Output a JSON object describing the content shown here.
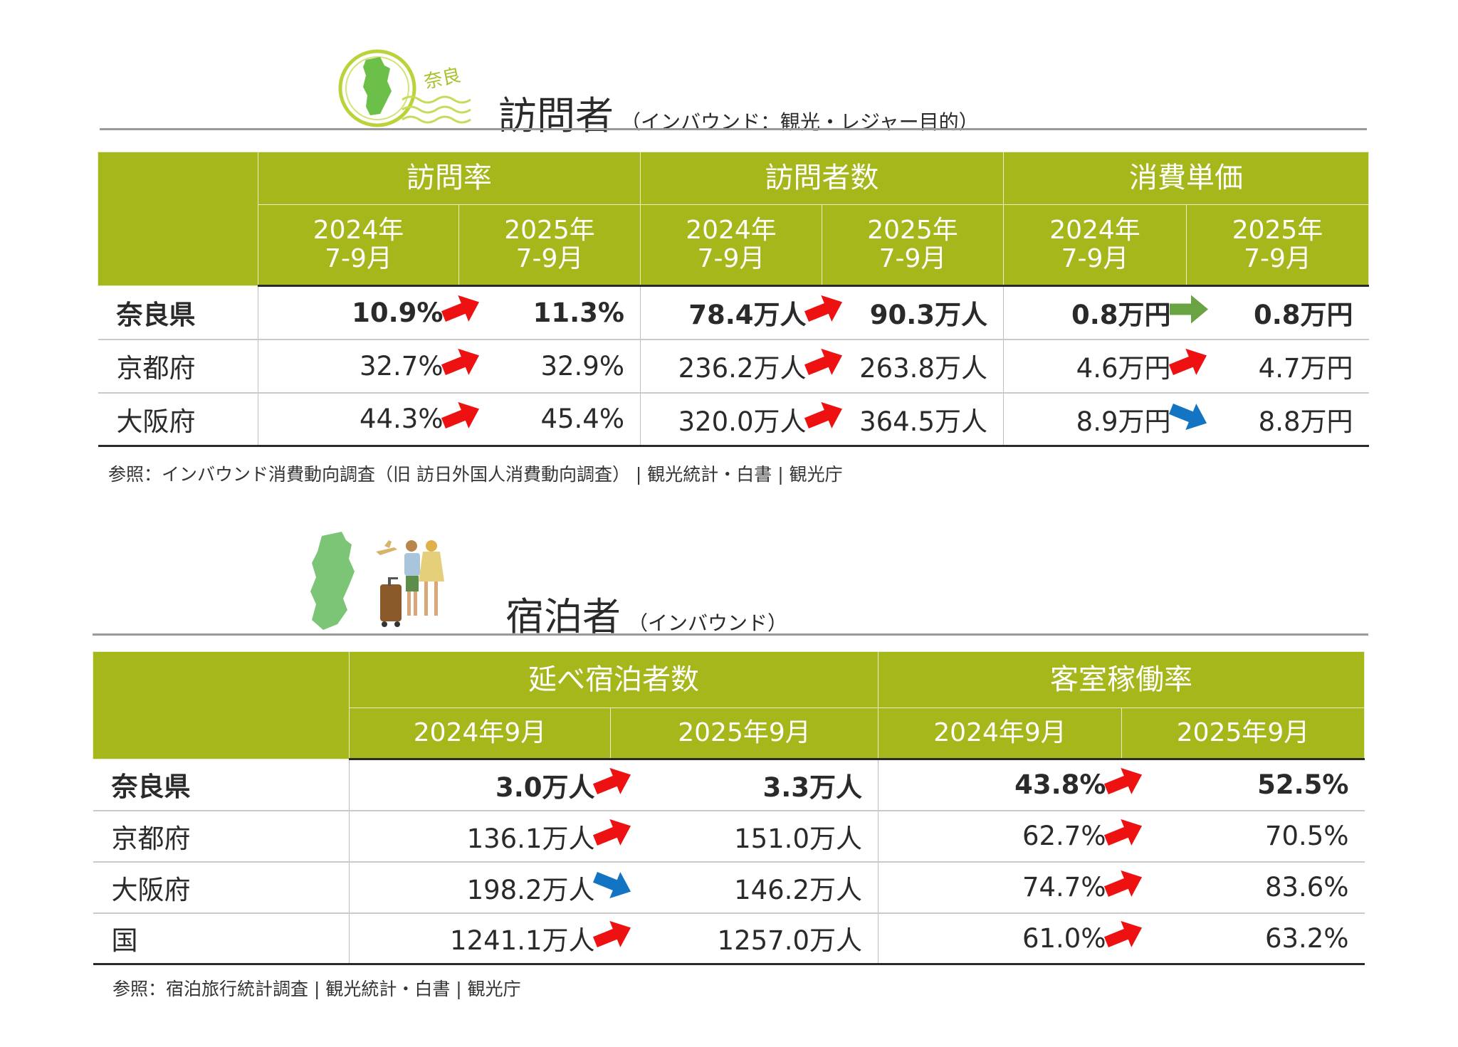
{
  "colors": {
    "header_bg": "#a6b71b",
    "arrow_up": "#ee1111",
    "arrow_flat": "#6aa342",
    "arrow_down": "#1474c4",
    "map_green": "#7cc576"
  },
  "visitors": {
    "stamp_text": "奈良",
    "title": "訪問者",
    "subtitle": "（インバウンド：観光・レジャー目的）",
    "groups": [
      "訪問率",
      "訪問者数",
      "消費単価"
    ],
    "periods": [
      {
        "year": "2024年",
        "month": "7-9月"
      },
      {
        "year": "2025年",
        "month": "7-9月"
      },
      {
        "year": "2024年",
        "month": "7-9月"
      },
      {
        "year": "2025年",
        "month": "7-9月"
      },
      {
        "year": "2024年",
        "month": "7-9月"
      },
      {
        "year": "2025年",
        "month": "7-9月"
      }
    ],
    "rows": [
      {
        "name": "奈良県",
        "values": [
          "10.9%",
          "11.3%",
          "78.4万人",
          "90.3万人",
          "0.8万円",
          "0.8万円"
        ],
        "trends": [
          "up",
          "up",
          "flat"
        ]
      },
      {
        "name": "京都府",
        "values": [
          "32.7%",
          "32.9%",
          "236.2万人",
          "263.8万人",
          "4.6万円",
          "4.7万円"
        ],
        "trends": [
          "up",
          "up",
          "up"
        ]
      },
      {
        "name": "大阪府",
        "values": [
          "44.3%",
          "45.4%",
          "320.0万人",
          "364.5万人",
          "8.9万円",
          "8.8万円"
        ],
        "trends": [
          "up",
          "up",
          "down"
        ]
      }
    ],
    "source": "参照：インバウンド消費動向調査（旧 訪日外国人消費動向調査） | 観光統計・白書 | 観光庁"
  },
  "lodging": {
    "title": "宿泊者",
    "subtitle": "（インバウンド）",
    "groups": [
      "延べ宿泊者数",
      "客室稼働率"
    ],
    "periods": [
      "2024年9月",
      "2025年9月",
      "2024年9月",
      "2025年9月"
    ],
    "rows": [
      {
        "name": "奈良県",
        "values": [
          "3.0万人",
          "3.3万人",
          "43.8%",
          "52.5%"
        ],
        "trends": [
          "up",
          "up"
        ]
      },
      {
        "name": "京都府",
        "values": [
          "136.1万人",
          "151.0万人",
          "62.7%",
          "70.5%"
        ],
        "trends": [
          "up",
          "up"
        ]
      },
      {
        "name": "大阪府",
        "values": [
          "198.2万人",
          "146.2万人",
          "74.7%",
          "83.6%"
        ],
        "trends": [
          "down",
          "up"
        ]
      },
      {
        "name": "国",
        "values": [
          "1241.1万人",
          "1257.0万人",
          "61.0%",
          "63.2%"
        ],
        "trends": [
          "up",
          "up"
        ]
      }
    ],
    "source": "参照：宿泊旅行統計調査 | 観光統計・白書 | 観光庁"
  }
}
